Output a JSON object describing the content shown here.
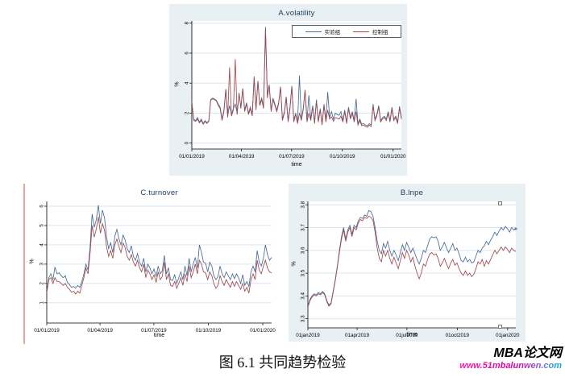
{
  "page": {
    "background": "#ffffff"
  },
  "caption": {
    "text": "图 6.1 共同趋势检验"
  },
  "watermark": {
    "brand": "MBA论文网",
    "url": "www.51mbalunwen.com",
    "url_color_start": "#e6007e",
    "url_color_end": "#00b5d8"
  },
  "colors": {
    "treatment_blue": "#476b96",
    "control_red": "#a0484e",
    "chart_bg": "#e9f0f4",
    "grid": "#d8e3ec",
    "title_navy": "#1a3a5c"
  },
  "chart_data": [
    {
      "type": "line",
      "title": "A.volatility",
      "xlabel": "time",
      "ylabel": "%",
      "background": "#e9f0f4",
      "plot_background": "#ffffff",
      "grid": "horizontal",
      "legend_position": "top-right-inside",
      "x_unit": "days since 01/01/2019",
      "x_max": 380,
      "xticks": [
        0,
        90,
        181,
        273,
        365
      ],
      "xtick_labels": [
        "01/01/2019",
        "01/04/2019",
        "01/07/2019",
        "01/10/2019",
        "01/01/2020"
      ],
      "ylim": [
        -0.4,
        8.15
      ],
      "yticks": [
        0,
        2,
        4,
        6,
        8
      ],
      "ytick_labels": [
        "0",
        "2",
        "4",
        "6",
        "8"
      ],
      "series": [
        {
          "name": "实验组",
          "color": "#476b96",
          "values": [
            2.7,
            1.6,
            1.5,
            1.7,
            1.4,
            1.6,
            1.3,
            1.5,
            1.35,
            1.5,
            2.9,
            3.0,
            2.95,
            2.85,
            2.6,
            2.4,
            1.6,
            2.2,
            3.6,
            1.8,
            2.5,
            1.9,
            2.3,
            2.6,
            2.0,
            3.3,
            2.4,
            3.65,
            2.2,
            2.7,
            2.0,
            2.4,
            1.9,
            4.35,
            2.3,
            4.1,
            2.6,
            3.0,
            2.4,
            7.75,
            3.2,
            3.9,
            2.2,
            3.0,
            2.6,
            2.2,
            2.7,
            3.75,
            1.6,
            2.1,
            3.1,
            1.5,
            2.4,
            3.8,
            1.5,
            2.0,
            1.4,
            4.5,
            1.6,
            2.3,
            3.5,
            1.5,
            3.2,
            1.6,
            2.5,
            1.4,
            2.9,
            1.5,
            2.3,
            1.3,
            2.6,
            1.5,
            3.4,
            1.7,
            2.1,
            1.6,
            2.0,
            1.9,
            1.85,
            2.1,
            1.5,
            2.2,
            1.4,
            2.4,
            1.7,
            2.1,
            1.5,
            2.95,
            1.3,
            1.6,
            1.25,
            1.3,
            1.2,
            1.15,
            1.3,
            1.2,
            2.6,
            1.6,
            1.9,
            2.5,
            1.5,
            1.7,
            1.8,
            1.6,
            2.1,
            1.5,
            2.4,
            1.6,
            1.8,
            1.4,
            2.45,
            1.7
          ]
        },
        {
          "name": "控制组",
          "color": "#a0484e",
          "values": [
            2.75,
            1.5,
            1.45,
            1.6,
            1.35,
            1.5,
            1.25,
            1.45,
            1.3,
            1.45,
            2.85,
            2.95,
            2.9,
            2.8,
            2.5,
            2.3,
            1.5,
            2.1,
            3.55,
            1.7,
            5.05,
            1.8,
            2.2,
            5.6,
            1.9,
            3.35,
            2.3,
            3.6,
            2.1,
            2.6,
            1.9,
            2.3,
            1.8,
            4.45,
            2.2,
            4.15,
            2.5,
            2.9,
            2.3,
            7.6,
            3.0,
            3.85,
            2.1,
            2.9,
            2.5,
            2.1,
            2.6,
            3.75,
            1.5,
            2.0,
            3.0,
            1.4,
            2.3,
            3.8,
            1.4,
            1.9,
            1.3,
            2.0,
            1.5,
            2.2,
            3.55,
            1.4,
            2.0,
            1.5,
            2.4,
            1.3,
            2.8,
            1.4,
            2.2,
            1.2,
            2.5,
            1.4,
            2.2,
            1.6,
            1.75,
            1.45,
            1.7,
            1.65,
            1.6,
            1.8,
            1.4,
            2.1,
            1.3,
            2.3,
            1.6,
            2.0,
            1.4,
            2.1,
            1.2,
            1.5,
            1.15,
            1.2,
            1.1,
            1.05,
            1.2,
            1.1,
            2.5,
            1.5,
            1.8,
            2.4,
            1.4,
            1.6,
            1.7,
            1.5,
            2.0,
            1.4,
            2.3,
            1.5,
            1.7,
            1.3,
            2.35,
            1.6
          ]
        }
      ]
    },
    {
      "type": "line",
      "title": "C.turnover",
      "xlabel": "time",
      "ylabel": "%",
      "background": "#ffffff",
      "plot_background": "#ffffff",
      "grid": "horizontal",
      "x_unit": "days since 01/01/2019",
      "x_max": 380,
      "xticks": [
        0,
        90,
        181,
        273,
        365
      ],
      "xtick_labels": [
        "01/01/2019",
        "01/04/2019",
        "01/07/2019",
        "01/10/2019",
        "01/01/2020"
      ],
      "ylim": [
        -0.05,
        6.25
      ],
      "yticks": [
        1,
        2,
        3,
        4,
        5,
        6
      ],
      "ytick_labels": [
        "1",
        "2",
        "3",
        "4",
        "5",
        "6"
      ],
      "series": [
        {
          "name": "实验组",
          "color": "#476b96",
          "values": [
            1.55,
            2.3,
            2.5,
            2.2,
            2.85,
            2.5,
            2.55,
            2.4,
            2.3,
            2.4,
            2.05,
            1.95,
            1.8,
            1.85,
            1.75,
            1.9,
            1.8,
            2.1,
            2.5,
            3.0,
            2.7,
            3.9,
            5.6,
            4.9,
            5.3,
            6.05,
            5.1,
            5.8,
            5.4,
            4.4,
            3.8,
            4.1,
            3.6,
            4.45,
            4.8,
            4.3,
            4.0,
            4.5,
            4.25,
            3.8,
            3.6,
            3.95,
            3.4,
            3.2,
            3.55,
            3.1,
            2.9,
            3.3,
            2.6,
            3.0,
            2.8,
            2.5,
            2.75,
            2.35,
            2.9,
            2.5,
            2.65,
            3.45,
            2.5,
            2.8,
            2.2,
            2.15,
            2.45,
            2.0,
            2.3,
            2.6,
            2.2,
            2.9,
            2.4,
            3.3,
            2.6,
            3.0,
            3.35,
            2.8,
            4.0,
            3.6,
            3.1,
            3.05,
            2.6,
            3.1,
            2.9,
            2.4,
            2.2,
            2.35,
            2.9,
            2.5,
            2.3,
            2.6,
            2.4,
            2.2,
            2.5,
            2.25,
            2.5,
            2.3,
            2.0,
            2.45,
            1.9,
            2.1,
            1.85,
            2.6,
            2.9,
            2.6,
            3.7,
            3.1,
            2.9,
            3.3,
            4.0,
            3.5,
            3.2,
            3.35
          ]
        },
        {
          "name": "控制组",
          "color": "#a0484e",
          "values": [
            1.5,
            2.2,
            2.3,
            2.0,
            2.3,
            2.1,
            2.1,
            2.0,
            1.9,
            2.0,
            1.8,
            1.7,
            1.55,
            1.6,
            1.45,
            1.6,
            1.5,
            1.9,
            2.3,
            2.8,
            2.5,
            3.6,
            5.0,
            4.4,
            4.8,
            5.45,
            4.6,
            5.1,
            4.75,
            3.9,
            3.4,
            3.7,
            3.3,
            4.0,
            4.3,
            3.9,
            3.6,
            4.1,
            3.85,
            3.4,
            3.2,
            3.5,
            3.1,
            2.9,
            3.2,
            2.8,
            2.6,
            3.0,
            2.3,
            2.7,
            2.5,
            2.2,
            2.45,
            2.05,
            2.6,
            2.2,
            2.35,
            3.1,
            2.2,
            2.5,
            1.9,
            1.85,
            2.1,
            1.75,
            2.0,
            2.3,
            1.9,
            2.5,
            2.1,
            2.9,
            2.3,
            2.6,
            3.0,
            2.5,
            3.2,
            3.0,
            2.6,
            2.55,
            2.2,
            2.6,
            2.4,
            2.0,
            1.75,
            1.9,
            2.4,
            2.1,
            1.9,
            2.2,
            2.0,
            1.8,
            2.1,
            1.85,
            2.1,
            1.9,
            1.7,
            2.0,
            1.6,
            1.8,
            1.5,
            2.2,
            2.5,
            2.2,
            3.2,
            2.7,
            2.5,
            2.9,
            3.2,
            2.8,
            2.6,
            2.55
          ]
        }
      ]
    },
    {
      "type": "line",
      "title": "B.lnpe",
      "xlabel": "time",
      "ylabel": "%",
      "background": "#e9f0f4",
      "plot_background": "#ffffff",
      "grid": "horizontal",
      "end_marker_series": 0,
      "x_unit": "days since 01jan2019",
      "x_max": 380,
      "xticks": [
        0,
        90,
        181,
        273,
        365
      ],
      "xtick_labels": [
        "01jan2019",
        "01apr2019",
        "01jul2019",
        "01oct2019",
        "01jan2020"
      ],
      "ylim": [
        3.26,
        3.815
      ],
      "yticks": [
        3.3,
        3.4,
        3.5,
        3.6,
        3.7,
        3.8
      ],
      "ytick_labels": [
        "3.3",
        "3.4",
        "3.5",
        "3.6",
        "3.7",
        "3.8"
      ],
      "series": [
        {
          "name": "实验组",
          "color": "#476b96",
          "values": [
            3.355,
            3.385,
            3.4,
            3.41,
            3.405,
            3.415,
            3.41,
            3.42,
            3.41,
            3.38,
            3.36,
            3.37,
            3.42,
            3.47,
            3.53,
            3.6,
            3.66,
            3.7,
            3.65,
            3.69,
            3.71,
            3.67,
            3.71,
            3.7,
            3.73,
            3.745,
            3.74,
            3.755,
            3.75,
            3.775,
            3.77,
            3.75,
            3.7,
            3.64,
            3.6,
            3.585,
            3.63,
            3.61,
            3.64,
            3.6,
            3.575,
            3.6,
            3.58,
            3.555,
            3.59,
            3.625,
            3.6,
            3.635,
            3.615,
            3.59,
            3.61,
            3.585,
            3.56,
            3.54,
            3.565,
            3.6,
            3.59,
            3.62,
            3.65,
            3.66,
            3.655,
            3.66,
            3.64,
            3.6,
            3.615,
            3.635,
            3.61,
            3.59,
            3.61,
            3.63,
            3.6,
            3.61,
            3.585,
            3.555,
            3.55,
            3.57,
            3.55,
            3.56,
            3.545,
            3.55,
            3.575,
            3.6,
            3.59,
            3.61,
            3.62,
            3.64,
            3.625,
            3.645,
            3.66,
            3.68,
            3.665,
            3.685,
            3.7,
            3.69,
            3.705,
            3.695,
            3.68,
            3.7,
            3.69,
            3.695
          ]
        },
        {
          "name": "控制组",
          "color": "#a0484e",
          "values": [
            3.35,
            3.38,
            3.395,
            3.405,
            3.4,
            3.41,
            3.405,
            3.415,
            3.405,
            3.375,
            3.355,
            3.365,
            3.415,
            3.465,
            3.525,
            3.59,
            3.65,
            3.69,
            3.64,
            3.68,
            3.7,
            3.66,
            3.7,
            3.69,
            3.72,
            3.735,
            3.73,
            3.745,
            3.74,
            3.75,
            3.745,
            3.73,
            3.68,
            3.61,
            3.565,
            3.55,
            3.6,
            3.575,
            3.6,
            3.565,
            3.54,
            3.57,
            3.545,
            3.52,
            3.555,
            3.59,
            3.565,
            3.6,
            3.58,
            3.55,
            3.57,
            3.53,
            3.5,
            3.475,
            3.5,
            3.54,
            3.53,
            3.56,
            3.585,
            3.59,
            3.58,
            3.585,
            3.565,
            3.53,
            3.545,
            3.565,
            3.54,
            3.52,
            3.545,
            3.56,
            3.535,
            3.545,
            3.52,
            3.5,
            3.49,
            3.51,
            3.49,
            3.5,
            3.485,
            3.495,
            3.52,
            3.55,
            3.54,
            3.56,
            3.53,
            3.555,
            3.54,
            3.56,
            3.58,
            3.6,
            3.585,
            3.6,
            3.615,
            3.6,
            3.615,
            3.605,
            3.59,
            3.61,
            3.6,
            3.595
          ]
        }
      ]
    }
  ]
}
